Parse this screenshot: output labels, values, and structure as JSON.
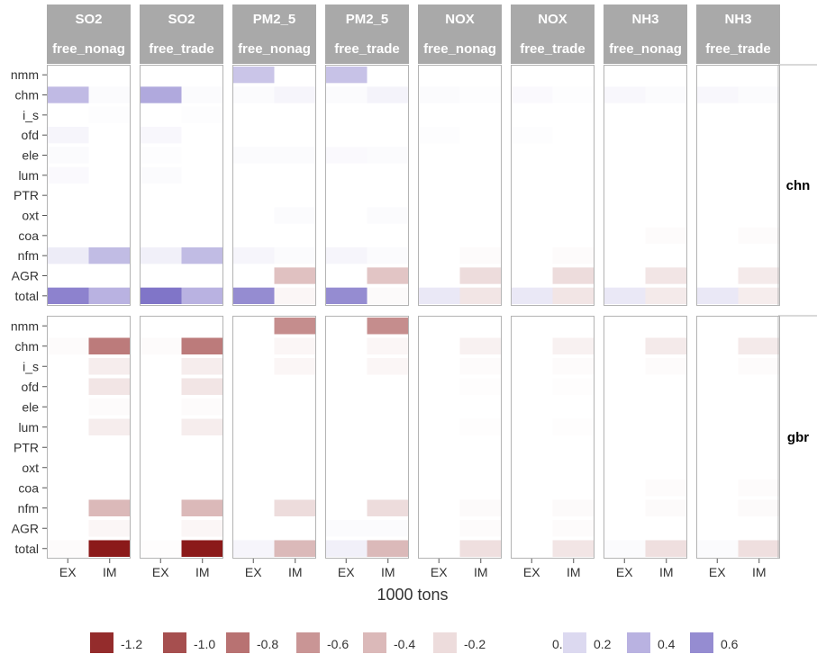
{
  "chart_data": {
    "type": "heatmap",
    "xlabel": "1000 tons",
    "ylabel": "",
    "x_categories": [
      "EX",
      "IM"
    ],
    "y_categories": [
      "nmm",
      "chm",
      "i_s",
      "ofd",
      "ele",
      "lum",
      "PTR",
      "oxt",
      "coa",
      "nfm",
      "AGR",
      "total"
    ],
    "column_panels": [
      {
        "pollutant": "SO2",
        "scenario": "free_nonag"
      },
      {
        "pollutant": "SO2",
        "scenario": "free_trade"
      },
      {
        "pollutant": "PM2_5",
        "scenario": "free_nonag"
      },
      {
        "pollutant": "PM2_5",
        "scenario": "free_trade"
      },
      {
        "pollutant": "NOX",
        "scenario": "free_nonag"
      },
      {
        "pollutant": "NOX",
        "scenario": "free_trade"
      },
      {
        "pollutant": "NH3",
        "scenario": "free_nonag"
      },
      {
        "pollutant": "NH3",
        "scenario": "free_trade"
      }
    ],
    "row_panels": [
      "chn",
      "gbr"
    ],
    "values": {
      "chn": [
        {
          "EX": [
            0,
            0.36,
            0,
            0.05,
            0.02,
            0.03,
            0,
            0,
            0,
            0.1,
            0,
            0.65
          ],
          "IM": [
            0,
            0.02,
            0.01,
            0,
            0,
            0,
            0,
            0,
            0,
            0.35,
            0,
            0.4
          ]
        },
        {
          "EX": [
            0,
            0.45,
            0,
            0.04,
            0.01,
            0.02,
            0,
            0,
            0,
            0.08,
            0,
            0.72
          ],
          "IM": [
            0,
            0.02,
            0.01,
            0,
            0,
            0,
            0,
            0,
            0,
            0.35,
            0,
            0.4
          ]
        },
        {
          "EX": [
            0.3,
            0.02,
            0,
            0,
            0.02,
            0,
            0,
            0,
            0,
            0.05,
            0,
            0.6
          ],
          "IM": [
            0,
            0.05,
            0,
            0,
            0.02,
            0,
            0,
            0.02,
            0,
            0.02,
            -0.35,
            -0.05
          ]
        },
        {
          "EX": [
            0.32,
            0.02,
            0,
            0,
            0.03,
            0,
            0,
            0,
            0,
            0.05,
            0,
            0.6
          ],
          "IM": [
            0,
            0.06,
            0,
            0,
            0.02,
            0,
            0,
            0.02,
            0,
            0.02,
            -0.33,
            -0.03
          ]
        },
        {
          "EX": [
            0,
            0.02,
            0,
            0.01,
            0,
            0,
            0,
            0,
            0,
            0,
            0,
            0.12
          ],
          "IM": [
            0,
            0.01,
            0,
            0,
            0,
            0,
            0,
            0,
            0,
            -0.02,
            -0.2,
            -0.15
          ]
        },
        {
          "EX": [
            0,
            0.03,
            0,
            0.01,
            0,
            0,
            0,
            0,
            0,
            0,
            0,
            0.12
          ],
          "IM": [
            0,
            0.01,
            0,
            0,
            0,
            0,
            0,
            0,
            0,
            -0.02,
            -0.2,
            -0.15
          ]
        },
        {
          "EX": [
            0,
            0.04,
            0,
            0,
            0,
            0,
            0,
            0,
            0,
            0,
            0,
            0.12
          ],
          "IM": [
            0,
            0.02,
            0,
            0,
            0,
            0,
            0,
            0,
            -0.02,
            0,
            -0.15,
            -0.12
          ]
        },
        {
          "EX": [
            0,
            0.04,
            0,
            0,
            0,
            0,
            0,
            0,
            0,
            0,
            0,
            0.12
          ],
          "IM": [
            0,
            0.02,
            0,
            0,
            0,
            0,
            0,
            0,
            -0.02,
            0,
            -0.12,
            -0.1
          ]
        }
      ],
      "gbr": [
        {
          "EX": [
            0,
            -0.02,
            0,
            0,
            0,
            0,
            0,
            0,
            0,
            0,
            0,
            -0.02
          ],
          "IM": [
            0,
            -0.75,
            -0.1,
            -0.15,
            -0.02,
            -0.1,
            0,
            0,
            0,
            -0.4,
            -0.05,
            -1.3
          ]
        },
        {
          "EX": [
            0,
            -0.02,
            0,
            0,
            0,
            0,
            0,
            0,
            0,
            0,
            0,
            -0.01
          ],
          "IM": [
            0,
            -0.75,
            -0.1,
            -0.15,
            -0.02,
            -0.1,
            0,
            0,
            0,
            -0.4,
            -0.05,
            -1.3
          ]
        },
        {
          "EX": [
            0,
            0,
            0,
            0,
            0,
            0,
            0,
            0,
            0,
            0,
            0,
            0.05
          ],
          "IM": [
            -0.65,
            -0.05,
            -0.05,
            0,
            0,
            0,
            0,
            0,
            0,
            -0.2,
            0,
            -0.4
          ]
        },
        {
          "EX": [
            0,
            0,
            0,
            0,
            0,
            0,
            0,
            0,
            0,
            0,
            0.02,
            0.08
          ],
          "IM": [
            -0.65,
            -0.05,
            -0.05,
            0,
            0,
            0,
            0,
            0,
            0,
            -0.2,
            0.02,
            -0.4
          ]
        },
        {
          "EX": [
            0,
            0,
            0,
            0,
            0,
            0,
            0,
            0,
            0,
            0,
            0,
            0
          ],
          "IM": [
            0,
            -0.08,
            -0.02,
            -0.01,
            0,
            -0.01,
            0,
            0,
            0,
            -0.03,
            -0.02,
            -0.18
          ]
        },
        {
          "EX": [
            0,
            0,
            0,
            0,
            0,
            0,
            0,
            0,
            0,
            0,
            0,
            0
          ],
          "IM": [
            0,
            -0.08,
            -0.02,
            -0.01,
            0,
            -0.01,
            0,
            0,
            0,
            -0.03,
            -0.02,
            -0.15
          ]
        },
        {
          "EX": [
            0,
            0,
            0,
            0,
            0,
            0,
            0,
            0,
            0,
            0,
            0,
            0.02
          ],
          "IM": [
            0,
            -0.12,
            -0.02,
            0,
            0,
            0,
            0,
            0,
            -0.02,
            -0.03,
            0,
            -0.18
          ]
        },
        {
          "EX": [
            0,
            0,
            0,
            0,
            0,
            0,
            0,
            0,
            0,
            0,
            0,
            0.02
          ],
          "IM": [
            0,
            -0.12,
            -0.02,
            0,
            0,
            0,
            0,
            0,
            -0.02,
            -0.03,
            0,
            -0.18
          ]
        }
      ]
    },
    "legend": {
      "placement": "bottom",
      "labels": [
        "-1.2",
        "-1.0",
        "-0.8",
        "-0.6",
        "-0.4",
        "-0.2",
        "0.0",
        "0.2",
        "0.4",
        "0.6"
      ],
      "values": [
        -1.2,
        -1.0,
        -0.8,
        -0.6,
        -0.4,
        -0.2,
        0.0,
        0.2,
        0.4,
        0.6
      ]
    },
    "color_scale": {
      "low": "#8b1a1a",
      "mid": "#ffffff",
      "high": "#7b6fc6",
      "min": -1.3,
      "max": 0.75
    },
    "colors": {
      "strip_bg": "#a9a9a9",
      "panel_border": "#b3b3b3",
      "text": "#333333"
    }
  }
}
